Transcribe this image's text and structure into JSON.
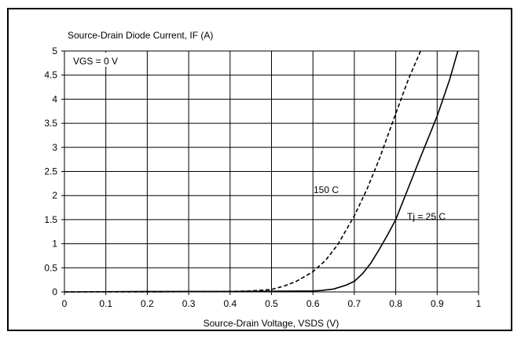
{
  "chart_data": {
    "type": "line",
    "title": "Source-Drain Diode Current, IF (A)",
    "xlabel": "Source-Drain Voltage, VSDS (V)",
    "ylabel": "Source-Drain Diode Current, IF (A)",
    "xlim": [
      0,
      1
    ],
    "ylim": [
      0,
      5
    ],
    "x_ticks": [
      "0",
      "0.1",
      "0.2",
      "0.3",
      "0.4",
      "0.5",
      "0.6",
      "0.7",
      "0.8",
      "0.9",
      "1"
    ],
    "y_ticks": [
      "0",
      "0.5",
      "1",
      "1.5",
      "2",
      "2.5",
      "3",
      "3.5",
      "4",
      "4.5",
      "5"
    ],
    "grid": true,
    "condition_label": "VGS = 0 V",
    "series": [
      {
        "name": "150 C",
        "style": "dashed",
        "color": "#000000",
        "x": [
          0.0,
          0.2,
          0.4,
          0.45,
          0.5,
          0.53,
          0.56,
          0.6,
          0.63,
          0.66,
          0.7,
          0.73,
          0.76,
          0.8,
          0.83,
          0.86
        ],
        "y": [
          0.0,
          0.0,
          0.01,
          0.02,
          0.05,
          0.12,
          0.22,
          0.42,
          0.65,
          0.98,
          1.58,
          2.12,
          2.75,
          3.7,
          4.4,
          5.0
        ]
      },
      {
        "name": "Tj = 25 C",
        "style": "solid",
        "color": "#000000",
        "x": [
          0.0,
          0.2,
          0.4,
          0.6,
          0.62,
          0.65,
          0.68,
          0.7,
          0.72,
          0.74,
          0.76,
          0.78,
          0.8,
          0.83,
          0.86,
          0.9,
          0.93,
          0.95
        ],
        "y": [
          0.0,
          0.01,
          0.01,
          0.02,
          0.03,
          0.06,
          0.14,
          0.22,
          0.38,
          0.6,
          0.88,
          1.18,
          1.5,
          2.15,
          2.8,
          3.65,
          4.4,
          5.0
        ]
      }
    ]
  }
}
